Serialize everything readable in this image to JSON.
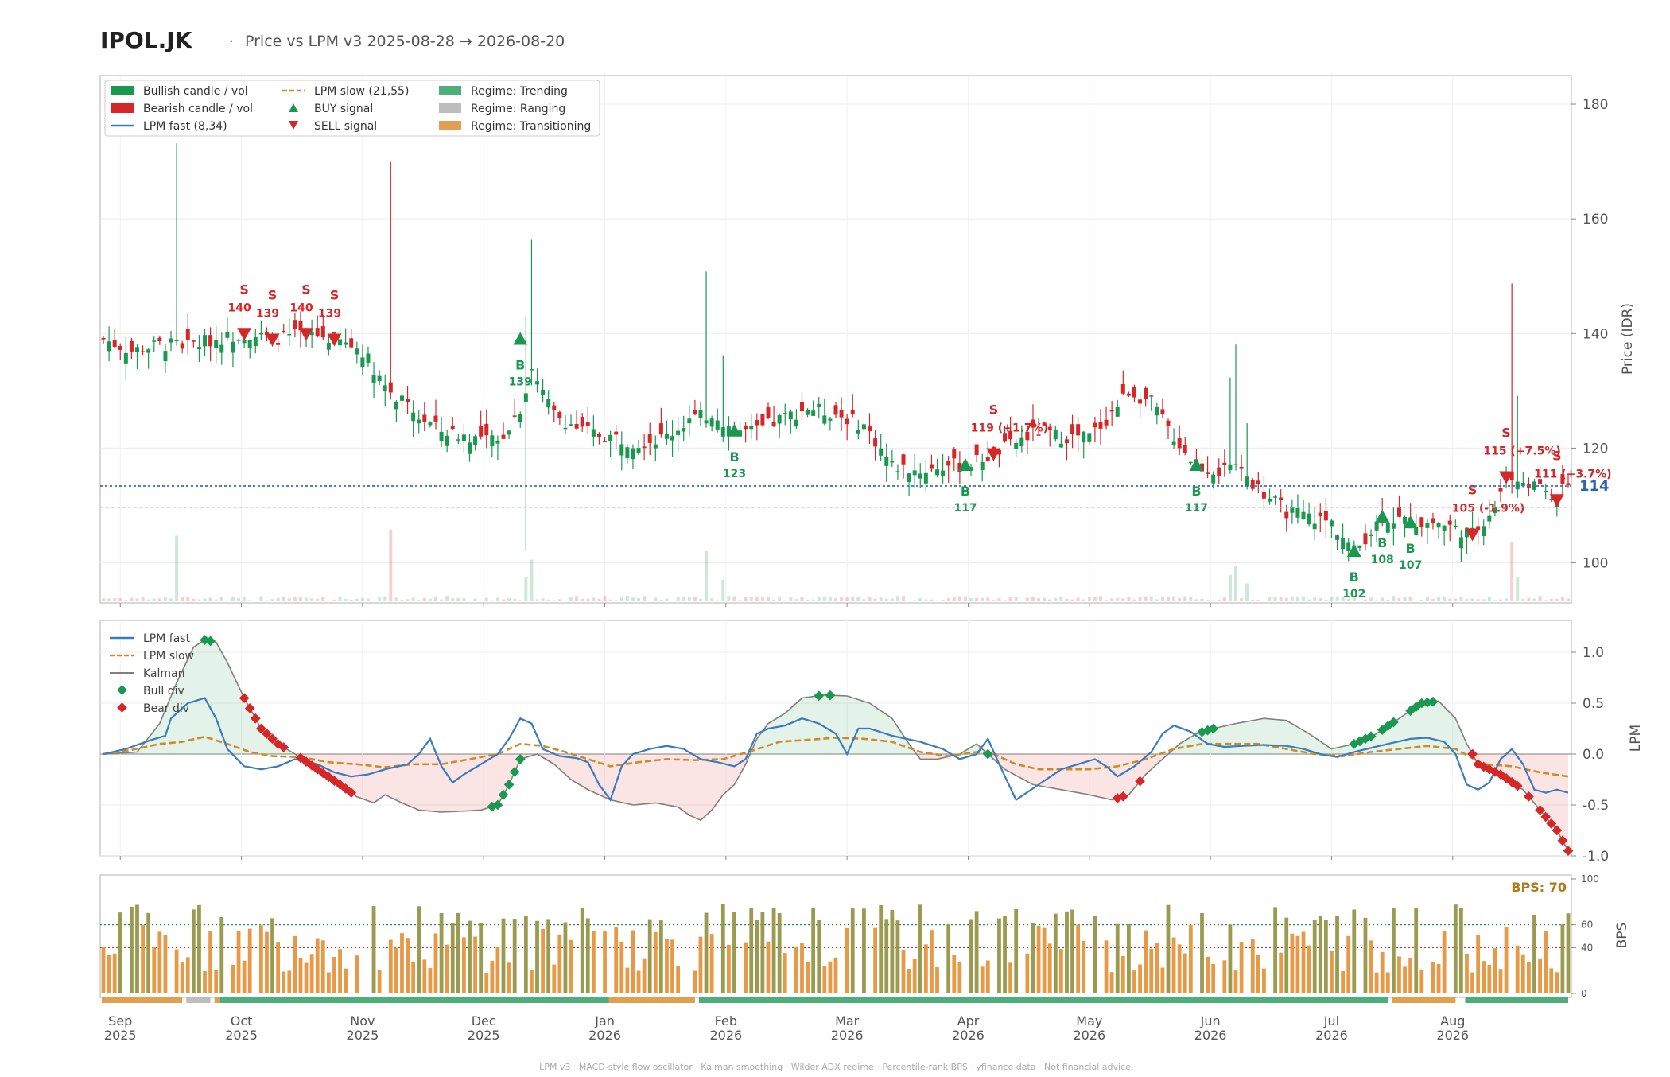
{
  "header": {
    "ticker": "IPOL.JK",
    "separator": "·",
    "subtitle": "Price vs LPM v3  2025-08-28 → 2026-08-20"
  },
  "colors": {
    "bull": "#1a9850",
    "bear": "#d62728",
    "fast": "#3a7bbf",
    "slow": "#d08a25",
    "kalman": "#7f7f7f",
    "trending": "#4caf7a",
    "ranging": "#bdbdbd",
    "transition": "#e0a050",
    "bps_high": "#9a9a50",
    "bps_mid": "#e69a48"
  },
  "legend": {
    "bull": "Bullish candle / vol",
    "bear": "Bearish candle / vol",
    "fast": "LPM fast (8,34)",
    "slow": "LPM slow (21,55)",
    "buy": "BUY signal",
    "sell": "SELL signal",
    "trending": "Regime: Trending",
    "ranging": "Regime: Ranging",
    "transitioning": "Regime: Transitioning"
  },
  "legend2": {
    "fast": "LPM fast",
    "slow": "LPM slow",
    "kalman": "Kalman",
    "bulldiv": "Bull div",
    "beardiv": "Bear div"
  },
  "axes": {
    "price_label": "Price (IDR)",
    "lpm_label": "LPM",
    "bps_label": "BPS",
    "price_ticks": [
      100,
      120,
      140,
      160,
      180
    ],
    "lpm_ticks": [
      1.0,
      0.5,
      0.0,
      -0.5,
      -1.0
    ],
    "bps_ticks": [
      0,
      40,
      60,
      100
    ],
    "months": [
      {
        "m": "Sep",
        "y": "2025"
      },
      {
        "m": "Oct",
        "y": "2025"
      },
      {
        "m": "Nov",
        "y": "2025"
      },
      {
        "m": "Dec",
        "y": "2025"
      },
      {
        "m": "Jan",
        "y": "2026"
      },
      {
        "m": "Feb",
        "y": "2026"
      },
      {
        "m": "Mar",
        "y": "2026"
      },
      {
        "m": "Apr",
        "y": "2026"
      },
      {
        "m": "May",
        "y": "2026"
      },
      {
        "m": "Jun",
        "y": "2026"
      },
      {
        "m": "Jul",
        "y": "2026"
      },
      {
        "m": "Aug",
        "y": "2026"
      }
    ]
  },
  "last_price": {
    "label": "114",
    "value": 114
  },
  "bps_badge": "BPS: 70",
  "signals": [
    {
      "type": "S",
      "idx": 25,
      "price": 140,
      "label": "140"
    },
    {
      "type": "S",
      "idx": 30,
      "price": 139,
      "label": "139"
    },
    {
      "type": "S",
      "idx": 36,
      "price": 140,
      "label": "140"
    },
    {
      "type": "S",
      "idx": 41,
      "price": 139,
      "label": "139"
    },
    {
      "type": "B",
      "idx": 74,
      "price": 139,
      "label": "139"
    },
    {
      "type": "B",
      "idx": 112,
      "price": 123,
      "label": "123"
    },
    {
      "type": "B",
      "idx": 153,
      "price": 117,
      "label": "117"
    },
    {
      "type": "S",
      "idx": 158,
      "price": 119,
      "label": "119 (+1.7%)"
    },
    {
      "type": "B",
      "idx": 194,
      "price": 117,
      "label": "117"
    },
    {
      "type": "B",
      "idx": 222,
      "price": 102,
      "label": "102"
    },
    {
      "type": "B",
      "idx": 227,
      "price": 108,
      "label": "108"
    },
    {
      "type": "B",
      "idx": 232,
      "price": 107,
      "label": "107"
    },
    {
      "type": "S",
      "idx": 243,
      "price": 105,
      "label": "105 (-1.9%)"
    },
    {
      "type": "S",
      "idx": 249,
      "price": 115,
      "label": "115 (+7.5%)"
    },
    {
      "type": "S",
      "idx": 258,
      "price": 111,
      "label": "111 (+3.7%)"
    }
  ],
  "footer": "LPM v3  ·  MACD-style flow oscillator  ·  Kalman smoothing  ·  Wilder ADX regime  ·  Percentile-rank BPS  ·  yfinance data  ·  Not financial advice",
  "chart_data": {
    "type": "candlestick",
    "title": "IPOL.JK · Price vs LPM v3  2025-08-28 → 2026-08-20",
    "x_range": [
      "2025-08-28",
      "2026-08-20"
    ],
    "price_range": [
      93,
      185
    ],
    "lpm_range": [
      -1.05,
      1.2
    ],
    "bps_range": [
      0,
      100
    ],
    "price_keypoints": [
      [
        0,
        139
      ],
      [
        5,
        137
      ],
      [
        10,
        138
      ],
      [
        15,
        138
      ],
      [
        20,
        139
      ],
      [
        25,
        140
      ],
      [
        30,
        139
      ],
      [
        36,
        140
      ],
      [
        41,
        139
      ],
      [
        46,
        137
      ],
      [
        50,
        131
      ],
      [
        55,
        126
      ],
      [
        60,
        123
      ],
      [
        65,
        122
      ],
      [
        70,
        121
      ],
      [
        74,
        127
      ],
      [
        76,
        133
      ],
      [
        80,
        126
      ],
      [
        85,
        123
      ],
      [
        90,
        122
      ],
      [
        95,
        121
      ],
      [
        100,
        122
      ],
      [
        104,
        125
      ],
      [
        108,
        126
      ],
      [
        112,
        123
      ],
      [
        116,
        123
      ],
      [
        120,
        125
      ],
      [
        125,
        127
      ],
      [
        130,
        126
      ],
      [
        135,
        124
      ],
      [
        140,
        117
      ],
      [
        145,
        116
      ],
      [
        150,
        117
      ],
      [
        153,
        117
      ],
      [
        158,
        119
      ],
      [
        162,
        121
      ],
      [
        166,
        123
      ],
      [
        170,
        122
      ],
      [
        175,
        122
      ],
      [
        178,
        125
      ],
      [
        182,
        130
      ],
      [
        186,
        128
      ],
      [
        190,
        122
      ],
      [
        194,
        117
      ],
      [
        198,
        116
      ],
      [
        202,
        116
      ],
      [
        206,
        112
      ],
      [
        210,
        109
      ],
      [
        214,
        108
      ],
      [
        218,
        107
      ],
      [
        222,
        102
      ],
      [
        227,
        108
      ],
      [
        232,
        107
      ],
      [
        237,
        107
      ],
      [
        243,
        105
      ],
      [
        247,
        110
      ],
      [
        249,
        115
      ],
      [
        253,
        114
      ],
      [
        258,
        111
      ],
      [
        260,
        114
      ]
    ],
    "lpm_fast_keypoints": [
      [
        0,
        0
      ],
      [
        4,
        0.05
      ],
      [
        8,
        0.13
      ],
      [
        11,
        0.18
      ],
      [
        12,
        0.35
      ],
      [
        15,
        0.5
      ],
      [
        18,
        0.55
      ],
      [
        20,
        0.35
      ],
      [
        22,
        0.05
      ],
      [
        25,
        -0.12
      ],
      [
        28,
        -0.15
      ],
      [
        31,
        -0.12
      ],
      [
        34,
        -0.05
      ],
      [
        38,
        -0.1
      ],
      [
        41,
        -0.18
      ],
      [
        44,
        -0.22
      ],
      [
        47,
        -0.2
      ],
      [
        50,
        -0.15
      ],
      [
        54,
        -0.1
      ],
      [
        56,
        0
      ],
      [
        58,
        0.15
      ],
      [
        60,
        -0.12
      ],
      [
        62,
        -0.28
      ],
      [
        64,
        -0.2
      ],
      [
        67,
        -0.1
      ],
      [
        70,
        0
      ],
      [
        72,
        0.15
      ],
      [
        74,
        0.35
      ],
      [
        76,
        0.3
      ],
      [
        78,
        0.05
      ],
      [
        81,
        -0.02
      ],
      [
        84,
        -0.04
      ],
      [
        86,
        -0.08
      ],
      [
        88,
        -0.3
      ],
      [
        90,
        -0.45
      ],
      [
        92,
        -0.12
      ],
      [
        94,
        0
      ],
      [
        97,
        0.05
      ],
      [
        100,
        0.08
      ],
      [
        103,
        0.05
      ],
      [
        106,
        -0.05
      ],
      [
        109,
        -0.08
      ],
      [
        112,
        -0.12
      ],
      [
        114,
        -0.05
      ],
      [
        116,
        0.2
      ],
      [
        118,
        0.25
      ],
      [
        121,
        0.28
      ],
      [
        124,
        0.35
      ],
      [
        127,
        0.3
      ],
      [
        130,
        0.2
      ],
      [
        132,
        0
      ],
      [
        134,
        0.25
      ],
      [
        136,
        0.25
      ],
      [
        140,
        0.18
      ],
      [
        145,
        0.12
      ],
      [
        149,
        0.05
      ],
      [
        152,
        -0.05
      ],
      [
        155,
        0
      ],
      [
        157,
        0.15
      ],
      [
        159,
        -0.1
      ],
      [
        162,
        -0.45
      ],
      [
        166,
        -0.3
      ],
      [
        170,
        -0.15
      ],
      [
        173,
        -0.1
      ],
      [
        176,
        -0.05
      ],
      [
        178,
        -0.12
      ],
      [
        180,
        -0.22
      ],
      [
        183,
        -0.12
      ],
      [
        186,
        0.02
      ],
      [
        188,
        0.2
      ],
      [
        190,
        0.28
      ],
      [
        193,
        0.22
      ],
      [
        196,
        0.1
      ],
      [
        199,
        0.07
      ],
      [
        202,
        0.08
      ],
      [
        206,
        0.09
      ],
      [
        210,
        0.08
      ],
      [
        213,
        0.05
      ],
      [
        216,
        0
      ],
      [
        219,
        -0.03
      ],
      [
        222,
        0.02
      ],
      [
        225,
        0.06
      ],
      [
        228,
        0.1
      ],
      [
        232,
        0.15
      ],
      [
        235,
        0.16
      ],
      [
        238,
        0.12
      ],
      [
        240,
        0
      ],
      [
        242,
        -0.3
      ],
      [
        244,
        -0.35
      ],
      [
        246,
        -0.28
      ],
      [
        248,
        -0.05
      ],
      [
        250,
        0.05
      ],
      [
        252,
        -0.1
      ],
      [
        254,
        -0.35
      ],
      [
        256,
        -0.38
      ],
      [
        258,
        -0.35
      ],
      [
        260,
        -0.38
      ]
    ],
    "lpm_slow_keypoints": [
      [
        0,
        0
      ],
      [
        5,
        0.04
      ],
      [
        10,
        0.1
      ],
      [
        14,
        0.12
      ],
      [
        18,
        0.17
      ],
      [
        22,
        0.1
      ],
      [
        26,
        0.02
      ],
      [
        30,
        -0.02
      ],
      [
        35,
        -0.03
      ],
      [
        40,
        -0.08
      ],
      [
        45,
        -0.1
      ],
      [
        50,
        -0.13
      ],
      [
        55,
        -0.1
      ],
      [
        60,
        -0.1
      ],
      [
        65,
        -0.05
      ],
      [
        70,
        0
      ],
      [
        74,
        0.1
      ],
      [
        78,
        0.08
      ],
      [
        82,
        0.02
      ],
      [
        86,
        -0.05
      ],
      [
        90,
        -0.12
      ],
      [
        95,
        -0.08
      ],
      [
        100,
        -0.05
      ],
      [
        105,
        -0.06
      ],
      [
        110,
        -0.05
      ],
      [
        115,
        0.03
      ],
      [
        120,
        0.12
      ],
      [
        125,
        0.14
      ],
      [
        130,
        0.16
      ],
      [
        135,
        0.15
      ],
      [
        140,
        0.12
      ],
      [
        145,
        0.02
      ],
      [
        150,
        -0.02
      ],
      [
        155,
        0.02
      ],
      [
        158,
        0
      ],
      [
        162,
        -0.1
      ],
      [
        166,
        -0.15
      ],
      [
        170,
        -0.15
      ],
      [
        175,
        -0.15
      ],
      [
        180,
        -0.12
      ],
      [
        185,
        -0.05
      ],
      [
        190,
        0.05
      ],
      [
        195,
        0.1
      ],
      [
        200,
        0.1
      ],
      [
        205,
        0.1
      ],
      [
        210,
        0.05
      ],
      [
        215,
        0
      ],
      [
        220,
        -0.02
      ],
      [
        225,
        0.02
      ],
      [
        230,
        0.05
      ],
      [
        235,
        0.08
      ],
      [
        240,
        0.05
      ],
      [
        245,
        -0.1
      ],
      [
        250,
        -0.12
      ],
      [
        255,
        -0.18
      ],
      [
        260,
        -0.22
      ]
    ],
    "kalman_keypoints": [
      [
        0,
        0
      ],
      [
        6,
        0.02
      ],
      [
        10,
        0.3
      ],
      [
        13,
        0.7
      ],
      [
        16,
        1.05
      ],
      [
        18,
        1.12
      ],
      [
        20,
        1.1
      ],
      [
        22,
        0.9
      ],
      [
        25,
        0.55
      ],
      [
        28,
        0.25
      ],
      [
        31,
        0.1
      ],
      [
        34,
        0.0
      ],
      [
        38,
        -0.15
      ],
      [
        42,
        -0.3
      ],
      [
        45,
        -0.42
      ],
      [
        48,
        -0.48
      ],
      [
        50,
        -0.4
      ],
      [
        53,
        -0.48
      ],
      [
        56,
        -0.55
      ],
      [
        60,
        -0.57
      ],
      [
        64,
        -0.56
      ],
      [
        67,
        -0.55
      ],
      [
        70,
        -0.5
      ],
      [
        72,
        -0.3
      ],
      [
        74,
        -0.05
      ],
      [
        77,
        0.0
      ],
      [
        80,
        -0.1
      ],
      [
        83,
        -0.25
      ],
      [
        86,
        -0.35
      ],
      [
        90,
        -0.45
      ],
      [
        94,
        -0.5
      ],
      [
        98,
        -0.48
      ],
      [
        102,
        -0.52
      ],
      [
        104,
        -0.6
      ],
      [
        106,
        -0.65
      ],
      [
        108,
        -0.55
      ],
      [
        110,
        -0.4
      ],
      [
        112,
        -0.3
      ],
      [
        114,
        -0.1
      ],
      [
        116,
        0.15
      ],
      [
        118,
        0.3
      ],
      [
        121,
        0.4
      ],
      [
        124,
        0.55
      ],
      [
        128,
        0.58
      ],
      [
        132,
        0.57
      ],
      [
        136,
        0.5
      ],
      [
        140,
        0.35
      ],
      [
        143,
        0.1
      ],
      [
        145,
        -0.05
      ],
      [
        148,
        -0.05
      ],
      [
        152,
        0
      ],
      [
        155,
        0.1
      ],
      [
        157,
        0
      ],
      [
        160,
        -0.15
      ],
      [
        165,
        -0.3
      ],
      [
        170,
        -0.35
      ],
      [
        175,
        -0.4
      ],
      [
        179,
        -0.45
      ],
      [
        182,
        -0.4
      ],
      [
        185,
        -0.2
      ],
      [
        188,
        -0.05
      ],
      [
        191,
        0.1
      ],
      [
        194,
        0.2
      ],
      [
        197,
        0.25
      ],
      [
        201,
        0.3
      ],
      [
        206,
        0.35
      ],
      [
        210,
        0.33
      ],
      [
        214,
        0.2
      ],
      [
        218,
        0.05
      ],
      [
        222,
        0.1
      ],
      [
        226,
        0.2
      ],
      [
        230,
        0.35
      ],
      [
        234,
        0.5
      ],
      [
        237,
        0.52
      ],
      [
        240,
        0.35
      ],
      [
        242,
        0.1
      ],
      [
        244,
        -0.1
      ],
      [
        248,
        -0.2
      ],
      [
        252,
        -0.35
      ],
      [
        255,
        -0.55
      ],
      [
        258,
        -0.75
      ],
      [
        260,
        -0.95
      ]
    ],
    "bull_div_idx": [
      18,
      19,
      69,
      70,
      71,
      72,
      73,
      74,
      127,
      129,
      157,
      195,
      196,
      197,
      222,
      223,
      224,
      225,
      227,
      228,
      229,
      232,
      233,
      234,
      235,
      236
    ],
    "bear_div_idx": [
      25,
      26,
      27,
      28,
      29,
      30,
      31,
      32,
      35,
      36,
      37,
      38,
      39,
      40,
      41,
      42,
      43,
      44,
      180,
      181,
      184,
      243,
      244,
      245,
      246,
      247,
      248,
      249,
      250,
      251,
      253,
      255,
      256,
      257,
      258,
      259,
      260
    ],
    "regime_segments": [
      {
        "from": 0,
        "to": 14,
        "regime": "Transitioning"
      },
      {
        "from": 15,
        "to": 19,
        "regime": "Ranging"
      },
      {
        "from": 20,
        "to": 21,
        "regime": "Transitioning"
      },
      {
        "from": 21,
        "to": 90,
        "regime": "Trending"
      },
      {
        "from": 90,
        "to": 105,
        "regime": "Transitioning"
      },
      {
        "from": 106,
        "to": 228,
        "regime": "Trending"
      },
      {
        "from": 229,
        "to": 240,
        "regime": "Transitioning"
      },
      {
        "from": 242,
        "to": 260,
        "regime": "Trending"
      }
    ],
    "bps_levels": [
      40,
      60
    ],
    "bps_last": 70
  }
}
